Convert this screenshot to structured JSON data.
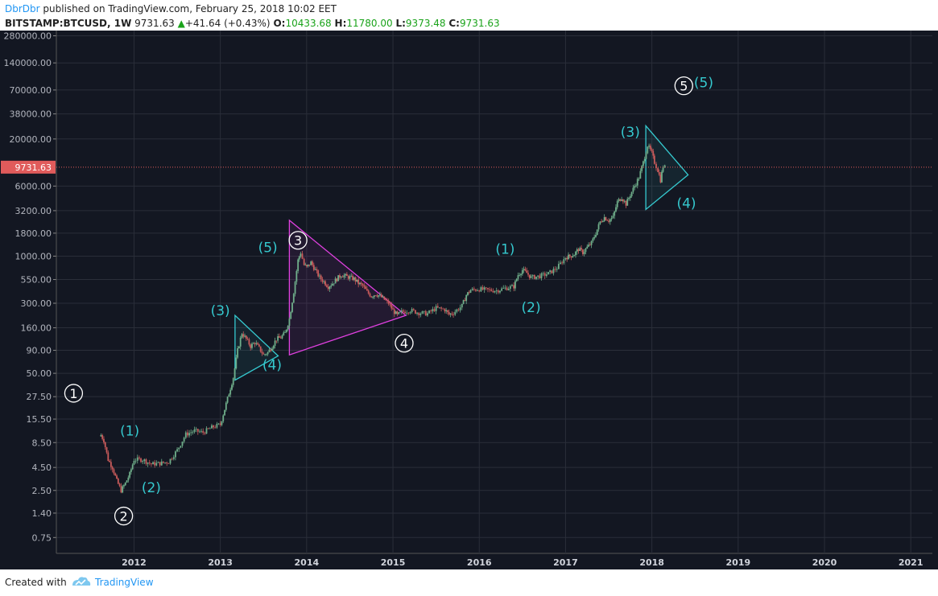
{
  "header": {
    "author": "DbrDbr",
    "published_text": "published on TradingView.com, February 25, 2018 10:02 EET",
    "symbol": "BITSTAMP:BTCUSD, 1W",
    "price": "9731.63",
    "change_arrow": "▲",
    "change": "+41.64 (+0.43%)",
    "open_label": "O:",
    "open": "10433.68",
    "high_label": "H:",
    "high": "11780.00",
    "low_label": "L:",
    "low": "9373.48",
    "close_label": "C:",
    "close": "9731.63"
  },
  "footer": {
    "created_with": "Created with",
    "brand": "TradingView"
  },
  "colors": {
    "background": "#131722",
    "grid": "#2a2e39",
    "up": "#6fae8a",
    "down": "#c95b5b",
    "magenta": "#e040e0",
    "cyan": "#35c9cf",
    "price_line": "#e05b5b"
  },
  "chart_data": {
    "type": "candlestick",
    "title": "",
    "y_scale": "log",
    "y_ticks": [
      0.75,
      1.4,
      2.5,
      4.5,
      8.5,
      15.5,
      27.5,
      50.0,
      90.0,
      160.0,
      300.0,
      550.0,
      1000.0,
      1800.0,
      3200.0,
      6000.0,
      20000.0,
      38000.0,
      70000.0,
      140000.0,
      280000.0
    ],
    "y_tick_labels": [
      "0.75",
      "1.40",
      "2.50",
      "4.50",
      "8.50",
      "15.50",
      "27.50",
      "50.00",
      "90.00",
      "160.00",
      "300.00",
      "550.00",
      "1000.00",
      "1800.00",
      "3200.00",
      "6000.00",
      "20000.00",
      "38000.00",
      "70000.00",
      "140000.00",
      "280000.00"
    ],
    "y_range": [
      0.5,
      320000
    ],
    "x_range": [
      2011.1,
      2021.25
    ],
    "x_ticks": [
      "2012",
      "2013",
      "2014",
      "2015",
      "2016",
      "2017",
      "2018",
      "2019",
      "2020",
      "2021"
    ],
    "current_price": 9731.63,
    "current_price_label": "9731.63",
    "price_path": [
      [
        2011.6,
        11
      ],
      [
        2011.65,
        9
      ],
      [
        2011.7,
        5.5
      ],
      [
        2011.75,
        4.5
      ],
      [
        2011.8,
        3.2
      ],
      [
        2011.85,
        2.5
      ],
      [
        2011.9,
        3
      ],
      [
        2011.95,
        3.8
      ],
      [
        2012.0,
        5.5
      ],
      [
        2012.1,
        5.5
      ],
      [
        2012.2,
        4.9
      ],
      [
        2012.3,
        5
      ],
      [
        2012.4,
        5.2
      ],
      [
        2012.5,
        7
      ],
      [
        2012.6,
        10.5
      ],
      [
        2012.7,
        11.5
      ],
      [
        2012.8,
        11
      ],
      [
        2012.9,
        12.5
      ],
      [
        2013.0,
        13.5
      ],
      [
        2013.05,
        20
      ],
      [
        2013.1,
        30
      ],
      [
        2013.15,
        45
      ],
      [
        2013.2,
        90
      ],
      [
        2013.25,
        140
      ],
      [
        2013.3,
        120
      ],
      [
        2013.35,
        100
      ],
      [
        2013.4,
        110
      ],
      [
        2013.45,
        95
      ],
      [
        2013.5,
        80
      ],
      [
        2013.55,
        85
      ],
      [
        2013.6,
        100
      ],
      [
        2013.65,
        120
      ],
      [
        2013.7,
        125
      ],
      [
        2013.75,
        140
      ],
      [
        2013.8,
        200
      ],
      [
        2013.85,
        400
      ],
      [
        2013.9,
        900
      ],
      [
        2013.93,
        1100
      ],
      [
        2013.97,
        800
      ],
      [
        2014.0,
        750
      ],
      [
        2014.05,
        850
      ],
      [
        2014.1,
        700
      ],
      [
        2014.15,
        580
      ],
      [
        2014.2,
        520
      ],
      [
        2014.25,
        460
      ],
      [
        2014.3,
        500
      ],
      [
        2014.35,
        560
      ],
      [
        2014.4,
        620
      ],
      [
        2014.45,
        600
      ],
      [
        2014.5,
        580
      ],
      [
        2014.55,
        560
      ],
      [
        2014.6,
        500
      ],
      [
        2014.65,
        470
      ],
      [
        2014.7,
        400
      ],
      [
        2014.75,
        360
      ],
      [
        2014.8,
        380
      ],
      [
        2014.85,
        360
      ],
      [
        2014.9,
        330
      ],
      [
        2014.95,
        300
      ],
      [
        2015.0,
        250
      ],
      [
        2015.05,
        220
      ],
      [
        2015.1,
        240
      ],
      [
        2015.2,
        250
      ],
      [
        2015.3,
        235
      ],
      [
        2015.4,
        230
      ],
      [
        2015.5,
        265
      ],
      [
        2015.6,
        255
      ],
      [
        2015.65,
        225
      ],
      [
        2015.7,
        235
      ],
      [
        2015.8,
        280
      ],
      [
        2015.85,
        370
      ],
      [
        2015.9,
        420
      ],
      [
        2016.0,
        430
      ],
      [
        2016.1,
        420
      ],
      [
        2016.2,
        415
      ],
      [
        2016.3,
        440
      ],
      [
        2016.4,
        460
      ],
      [
        2016.45,
        620
      ],
      [
        2016.5,
        700
      ],
      [
        2016.55,
        650
      ],
      [
        2016.6,
        580
      ],
      [
        2016.7,
        600
      ],
      [
        2016.8,
        640
      ],
      [
        2016.9,
        740
      ],
      [
        2017.0,
        970
      ],
      [
        2017.05,
        1000
      ],
      [
        2017.1,
        1050
      ],
      [
        2017.15,
        1200
      ],
      [
        2017.2,
        1100
      ],
      [
        2017.25,
        1250
      ],
      [
        2017.3,
        1400
      ],
      [
        2017.35,
        1800
      ],
      [
        2017.4,
        2400
      ],
      [
        2017.45,
        2700
      ],
      [
        2017.5,
        2500
      ],
      [
        2017.55,
        2700
      ],
      [
        2017.6,
        4000
      ],
      [
        2017.65,
        4500
      ],
      [
        2017.7,
        3800
      ],
      [
        2017.75,
        4800
      ],
      [
        2017.8,
        6000
      ],
      [
        2017.85,
        7500
      ],
      [
        2017.9,
        11000
      ],
      [
        2017.95,
        17000
      ],
      [
        2018.0,
        14000
      ],
      [
        2018.03,
        11000
      ],
      [
        2018.07,
        9000
      ],
      [
        2018.1,
        7000
      ],
      [
        2018.13,
        10000
      ],
      [
        2018.15,
        9731.63
      ]
    ],
    "annotations": [
      {
        "label": "1",
        "x": 2011.3,
        "y": 30,
        "style": "circle"
      },
      {
        "label": "(1)",
        "x": 2011.95,
        "y": 11.5,
        "style": "paren"
      },
      {
        "label": "(2)",
        "x": 2012.2,
        "y": 2.7,
        "style": "paren"
      },
      {
        "label": "2",
        "x": 2011.88,
        "y": 1.3,
        "style": "circle"
      },
      {
        "label": "(3)",
        "x": 2013.0,
        "y": 250,
        "style": "paren"
      },
      {
        "label": "(4)",
        "x": 2013.6,
        "y": 62,
        "style": "paren"
      },
      {
        "label": "(5)",
        "x": 2013.55,
        "y": 1250,
        "style": "paren"
      },
      {
        "label": "3",
        "x": 2013.9,
        "y": 1500,
        "style": "circle"
      },
      {
        "label": "4",
        "x": 2015.13,
        "y": 108,
        "style": "circle"
      },
      {
        "label": "(1)",
        "x": 2016.3,
        "y": 1200,
        "style": "paren"
      },
      {
        "label": "(2)",
        "x": 2016.6,
        "y": 270,
        "style": "paren"
      },
      {
        "label": "(3)",
        "x": 2017.75,
        "y": 24000,
        "style": "paren"
      },
      {
        "label": "(4)",
        "x": 2018.4,
        "y": 3900,
        "style": "paren"
      },
      {
        "label": "5",
        "x": 2018.37,
        "y": 78000,
        "style": "circle"
      },
      {
        "label": "(5)",
        "x": 2018.6,
        "y": 85000,
        "style": "paren"
      }
    ],
    "triangles": [
      {
        "color": "magenta",
        "points": [
          [
            2013.8,
            2500
          ],
          [
            2013.8,
            80
          ],
          [
            2015.15,
            220
          ]
        ]
      },
      {
        "color": "cyan",
        "points": [
          [
            2013.17,
            220
          ],
          [
            2013.17,
            42
          ],
          [
            2013.67,
            78
          ]
        ]
      },
      {
        "color": "cyan",
        "points": [
          [
            2017.93,
            28000
          ],
          [
            2017.93,
            3300
          ],
          [
            2018.42,
            8000
          ]
        ]
      }
    ]
  }
}
